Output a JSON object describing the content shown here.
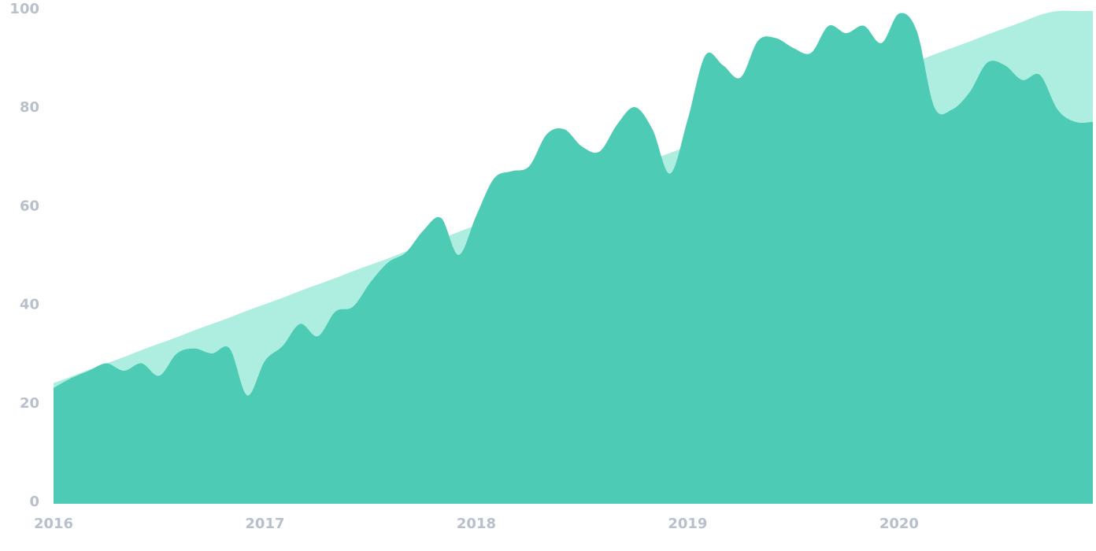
{
  "chart_data": {
    "type": "area",
    "categories": [
      "2016",
      null,
      null,
      null,
      null,
      null,
      null,
      null,
      null,
      null,
      null,
      null,
      "2017",
      null,
      null,
      null,
      null,
      null,
      null,
      null,
      null,
      null,
      null,
      null,
      "2018",
      null,
      null,
      null,
      null,
      null,
      null,
      null,
      null,
      null,
      null,
      null,
      "2019",
      null,
      null,
      null,
      null,
      null,
      null,
      null,
      null,
      null,
      null,
      null,
      "2020",
      null,
      null,
      null,
      null,
      null,
      null,
      null,
      null,
      null,
      null,
      null
    ],
    "series": [
      {
        "color": "#aeeee0",
        "values": [
          24.5,
          25.8,
          27.2,
          28.5,
          29.8,
          31.2,
          32.5,
          33.8,
          35.2,
          36.5,
          37.8,
          39.2,
          40.5,
          41.8,
          43.2,
          44.5,
          45.8,
          47.2,
          48.5,
          49.8,
          51.2,
          52.5,
          53.8,
          55.2,
          56.5,
          57.8,
          59.2,
          60.5,
          61.8,
          63.2,
          64.5,
          65.8,
          67.2,
          68.5,
          69.8,
          71.2,
          72.5,
          73.8,
          75.2,
          76.5,
          77.8,
          79.2,
          80.5,
          81.8,
          83.2,
          84.5,
          85.8,
          87.2,
          88.5,
          89.8,
          91.2,
          92.5,
          93.8,
          95.2,
          96.5,
          97.8,
          99.2,
          100,
          100,
          100
        ]
      },
      {
        "color": "#4ecbb4",
        "values": [
          23.5,
          25.5,
          27,
          28.5,
          27,
          28.5,
          26,
          30.5,
          31.5,
          30.5,
          31.5,
          22,
          29,
          32,
          36.5,
          34,
          39,
          40,
          45,
          49,
          51,
          55.5,
          58,
          50.5,
          58.5,
          66,
          67.5,
          68.5,
          75,
          76,
          72.5,
          71.5,
          77,
          80.5,
          76,
          67,
          78,
          91,
          89,
          86.5,
          94,
          94.5,
          92.5,
          91.5,
          97,
          95.5,
          97,
          93.5,
          99.5,
          96,
          80.5,
          80,
          83.5,
          89.5,
          89,
          86,
          87,
          80,
          77.5,
          77.5
        ]
      }
    ],
    "ylim": [
      0,
      100
    ],
    "yticks": [
      0,
      20,
      40,
      60,
      80,
      100
    ],
    "grid": false
  }
}
